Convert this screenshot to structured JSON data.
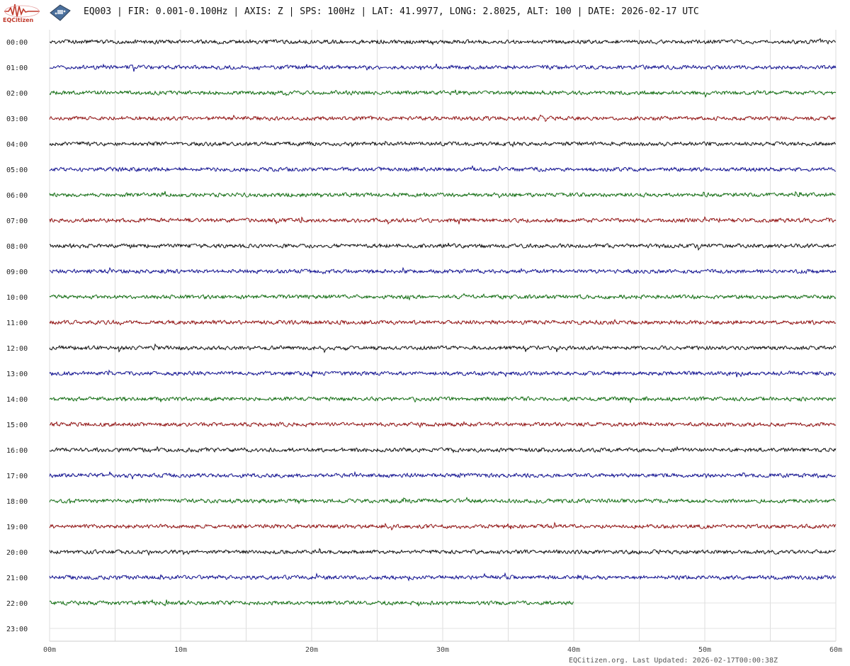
{
  "header": {
    "logo_text": "EQCitizen",
    "title": "EQ003 | FIR: 0.001-0.100Hz | AXIS: Z | SPS: 100Hz | LAT: 41.9977, LONG: 2.8025, ALT: 100 | DATE: 2026-02-17 UTC"
  },
  "footer": {
    "last_updated": "EQCitizen.org. Last Updated: 2026-02-17T00:00:38Z"
  },
  "chart_data": {
    "type": "line",
    "title": "",
    "xlabel": "",
    "ylabel": "",
    "x_range_minutes": [
      0,
      60
    ],
    "x_ticks": [
      "00m",
      "10m",
      "20m",
      "30m",
      "40m",
      "50m",
      "60m"
    ],
    "y_ticks": [
      "00:00",
      "01:00",
      "02:00",
      "03:00",
      "04:00",
      "05:00",
      "06:00",
      "07:00",
      "08:00",
      "09:00",
      "10:00",
      "11:00",
      "12:00",
      "13:00",
      "14:00",
      "15:00",
      "16:00",
      "17:00",
      "18:00",
      "19:00",
      "20:00",
      "21:00",
      "22:00",
      "23:00"
    ],
    "grid": true,
    "colors": [
      "#000000",
      "#00008b",
      "#006400",
      "#8b0000"
    ],
    "series": [
      {
        "hour": "00:00",
        "color": "#000000",
        "duration_minutes": 60
      },
      {
        "hour": "01:00",
        "color": "#00008b",
        "duration_minutes": 60
      },
      {
        "hour": "02:00",
        "color": "#006400",
        "duration_minutes": 60
      },
      {
        "hour": "03:00",
        "color": "#8b0000",
        "duration_minutes": 60
      },
      {
        "hour": "04:00",
        "color": "#000000",
        "duration_minutes": 60
      },
      {
        "hour": "05:00",
        "color": "#00008b",
        "duration_minutes": 60
      },
      {
        "hour": "06:00",
        "color": "#006400",
        "duration_minutes": 60
      },
      {
        "hour": "07:00",
        "color": "#8b0000",
        "duration_minutes": 60
      },
      {
        "hour": "08:00",
        "color": "#000000",
        "duration_minutes": 60
      },
      {
        "hour": "09:00",
        "color": "#00008b",
        "duration_minutes": 60
      },
      {
        "hour": "10:00",
        "color": "#006400",
        "duration_minutes": 60
      },
      {
        "hour": "11:00",
        "color": "#8b0000",
        "duration_minutes": 60
      },
      {
        "hour": "12:00",
        "color": "#000000",
        "duration_minutes": 60
      },
      {
        "hour": "13:00",
        "color": "#00008b",
        "duration_minutes": 60
      },
      {
        "hour": "14:00",
        "color": "#006400",
        "duration_minutes": 60
      },
      {
        "hour": "15:00",
        "color": "#8b0000",
        "duration_minutes": 60
      },
      {
        "hour": "16:00",
        "color": "#000000",
        "duration_minutes": 60
      },
      {
        "hour": "17:00",
        "color": "#00008b",
        "duration_minutes": 60
      },
      {
        "hour": "18:00",
        "color": "#006400",
        "duration_minutes": 60
      },
      {
        "hour": "19:00",
        "color": "#8b0000",
        "duration_minutes": 60
      },
      {
        "hour": "20:00",
        "color": "#000000",
        "duration_minutes": 60
      },
      {
        "hour": "21:00",
        "color": "#00008b",
        "duration_minutes": 60
      },
      {
        "hour": "22:00",
        "color": "#006400",
        "duration_minutes": 40
      },
      {
        "hour": "23:00",
        "color": "#8b0000",
        "duration_minutes": 0
      }
    ]
  }
}
